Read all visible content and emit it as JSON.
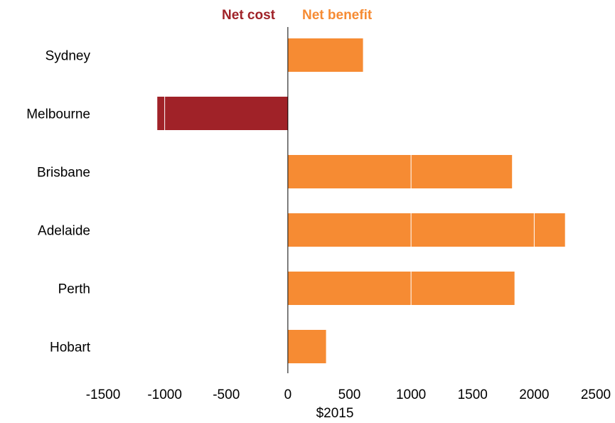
{
  "chart_data": {
    "type": "bar",
    "orientation": "horizontal",
    "categories": [
      "Sydney",
      "Melbourne",
      "Brisbane",
      "Adelaide",
      "Perth",
      "Hobart"
    ],
    "values": [
      610,
      -1060,
      1820,
      2250,
      1840,
      310
    ],
    "xlabel": "$2015",
    "ylabel": "",
    "xlim": [
      -1500,
      2500
    ],
    "xticks": [
      -1500,
      -1000,
      -500,
      0,
      500,
      1000,
      1500,
      2000,
      2500
    ],
    "grid": false,
    "legend": {
      "placement": "top-center",
      "entries": [
        {
          "name": "Net cost",
          "color": "#a02228"
        },
        {
          "name": "Net benefit",
          "color": "#f68b33"
        }
      ]
    },
    "colors": {
      "negative": "#a02228",
      "positive": "#f68b33"
    }
  }
}
